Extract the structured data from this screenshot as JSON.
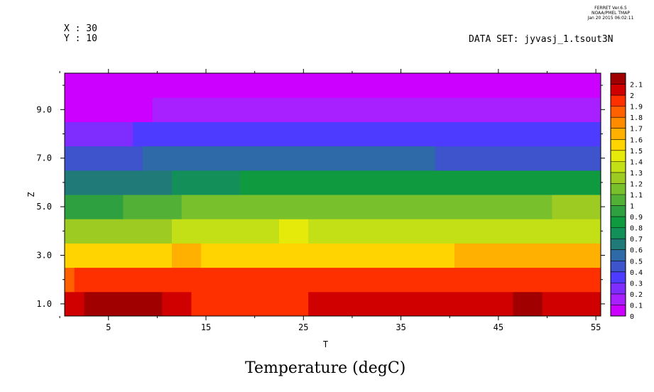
{
  "header": {
    "x_label": "X : 30",
    "y_label": "Y : 10",
    "dataset": "DATA SET: jyvasj_1.tsout3N",
    "stamp": [
      "FERRET  Ver.6.5",
      "NOAA/PMEL TMAP",
      "Jan 20 2015 06:02:11"
    ]
  },
  "chart_data": {
    "type": "heatmap",
    "title": "Temperature (degC)",
    "xlabel": "T",
    "ylabel": "Z",
    "xlim": [
      0.5,
      55.5
    ],
    "ylim": [
      0.5,
      10.5
    ],
    "x_ticks": [
      5,
      15,
      25,
      35,
      45,
      55
    ],
    "x_tick_labels": [
      "5",
      "15",
      "25",
      "35",
      "45",
      "55"
    ],
    "y_ticks": [
      1,
      3,
      5,
      7,
      9
    ],
    "y_tick_labels": [
      "1.0",
      "3.0",
      "5.0",
      "7.0",
      "9.0"
    ],
    "colorbar": {
      "min": 0,
      "max": 2.1,
      "step": 0.1,
      "labels": [
        "0",
        "0.1",
        "0.2",
        "0.3",
        "0.4",
        "0.5",
        "0.6",
        "0.7",
        "0.8",
        "0.9",
        "1",
        "1.1",
        "1.2",
        "1.3",
        "1.4",
        "1.5",
        "1.6",
        "1.7",
        "1.8",
        "1.9",
        "2",
        "2.1"
      ],
      "colors": [
        "#cc00ff",
        "#a820ff",
        "#7f2cff",
        "#4d3cff",
        "#3d54cc",
        "#2f6aa8",
        "#1f7a78",
        "#13905a",
        "#0f9a40",
        "#2ea040",
        "#52b036",
        "#78c02c",
        "#9ecb22",
        "#c2e015",
        "#e6ea0a",
        "#ffd400",
        "#ffb000",
        "#ff8c00",
        "#ff6000",
        "#ff3000",
        "#d00000",
        "#a00000"
      ]
    },
    "rows": [
      {
        "z": 1,
        "segments": [
          {
            "t0": 0.5,
            "t1": 2.5,
            "v": 2.05
          },
          {
            "t0": 2.5,
            "t1": 10.5,
            "v": 2.15
          },
          {
            "t0": 10.5,
            "t1": 13.5,
            "v": 2.05
          },
          {
            "t0": 13.5,
            "t1": 25.5,
            "v": 1.95
          },
          {
            "t0": 25.5,
            "t1": 46.5,
            "v": 2.05
          },
          {
            "t0": 46.5,
            "t1": 49.5,
            "v": 2.15
          },
          {
            "t0": 49.5,
            "t1": 55.5,
            "v": 2.05
          }
        ]
      },
      {
        "z": 2,
        "segments": [
          {
            "t0": 0.5,
            "t1": 1.5,
            "v": 1.85
          },
          {
            "t0": 1.5,
            "t1": 55.5,
            "v": 1.95
          }
        ]
      },
      {
        "z": 3,
        "segments": [
          {
            "t0": 0.5,
            "t1": 11.5,
            "v": 1.55
          },
          {
            "t0": 11.5,
            "t1": 14.5,
            "v": 1.65
          },
          {
            "t0": 14.5,
            "t1": 40.5,
            "v": 1.55
          },
          {
            "t0": 40.5,
            "t1": 55.5,
            "v": 1.65
          }
        ]
      },
      {
        "z": 4,
        "segments": [
          {
            "t0": 0.5,
            "t1": 2.5,
            "v": 1.25
          },
          {
            "t0": 2.5,
            "t1": 11.5,
            "v": 1.25
          },
          {
            "t0": 11.5,
            "t1": 22.5,
            "v": 1.35
          },
          {
            "t0": 22.5,
            "t1": 25.5,
            "v": 1.45
          },
          {
            "t0": 25.5,
            "t1": 55.5,
            "v": 1.35
          }
        ]
      },
      {
        "z": 5,
        "segments": [
          {
            "t0": 0.5,
            "t1": 6.5,
            "v": 0.95
          },
          {
            "t0": 6.5,
            "t1": 12.5,
            "v": 1.05
          },
          {
            "t0": 12.5,
            "t1": 23.5,
            "v": 1.15
          },
          {
            "t0": 23.5,
            "t1": 50.5,
            "v": 1.15
          },
          {
            "t0": 50.5,
            "t1": 55.5,
            "v": 1.25
          }
        ]
      },
      {
        "z": 6,
        "segments": [
          {
            "t0": 0.5,
            "t1": 11.5,
            "v": 0.65
          },
          {
            "t0": 11.5,
            "t1": 18.5,
            "v": 0.75
          },
          {
            "t0": 18.5,
            "t1": 55.5,
            "v": 0.85
          }
        ]
      },
      {
        "z": 7,
        "segments": [
          {
            "t0": 0.5,
            "t1": 8.5,
            "v": 0.45
          },
          {
            "t0": 8.5,
            "t1": 16.5,
            "v": 0.55
          },
          {
            "t0": 16.5,
            "t1": 38.5,
            "v": 0.55
          },
          {
            "t0": 38.5,
            "t1": 55.5,
            "v": 0.45
          }
        ]
      },
      {
        "z": 8,
        "segments": [
          {
            "t0": 0.5,
            "t1": 7.5,
            "v": 0.25
          },
          {
            "t0": 7.5,
            "t1": 55.5,
            "v": 0.35
          }
        ]
      },
      {
        "z": 9,
        "segments": [
          {
            "t0": 0.5,
            "t1": 9.5,
            "v": 0.05
          },
          {
            "t0": 9.5,
            "t1": 55.5,
            "v": 0.15
          }
        ]
      },
      {
        "z": 10,
        "segments": [
          {
            "t0": 0.5,
            "t1": 55.5,
            "v": 0.05
          }
        ]
      }
    ]
  }
}
